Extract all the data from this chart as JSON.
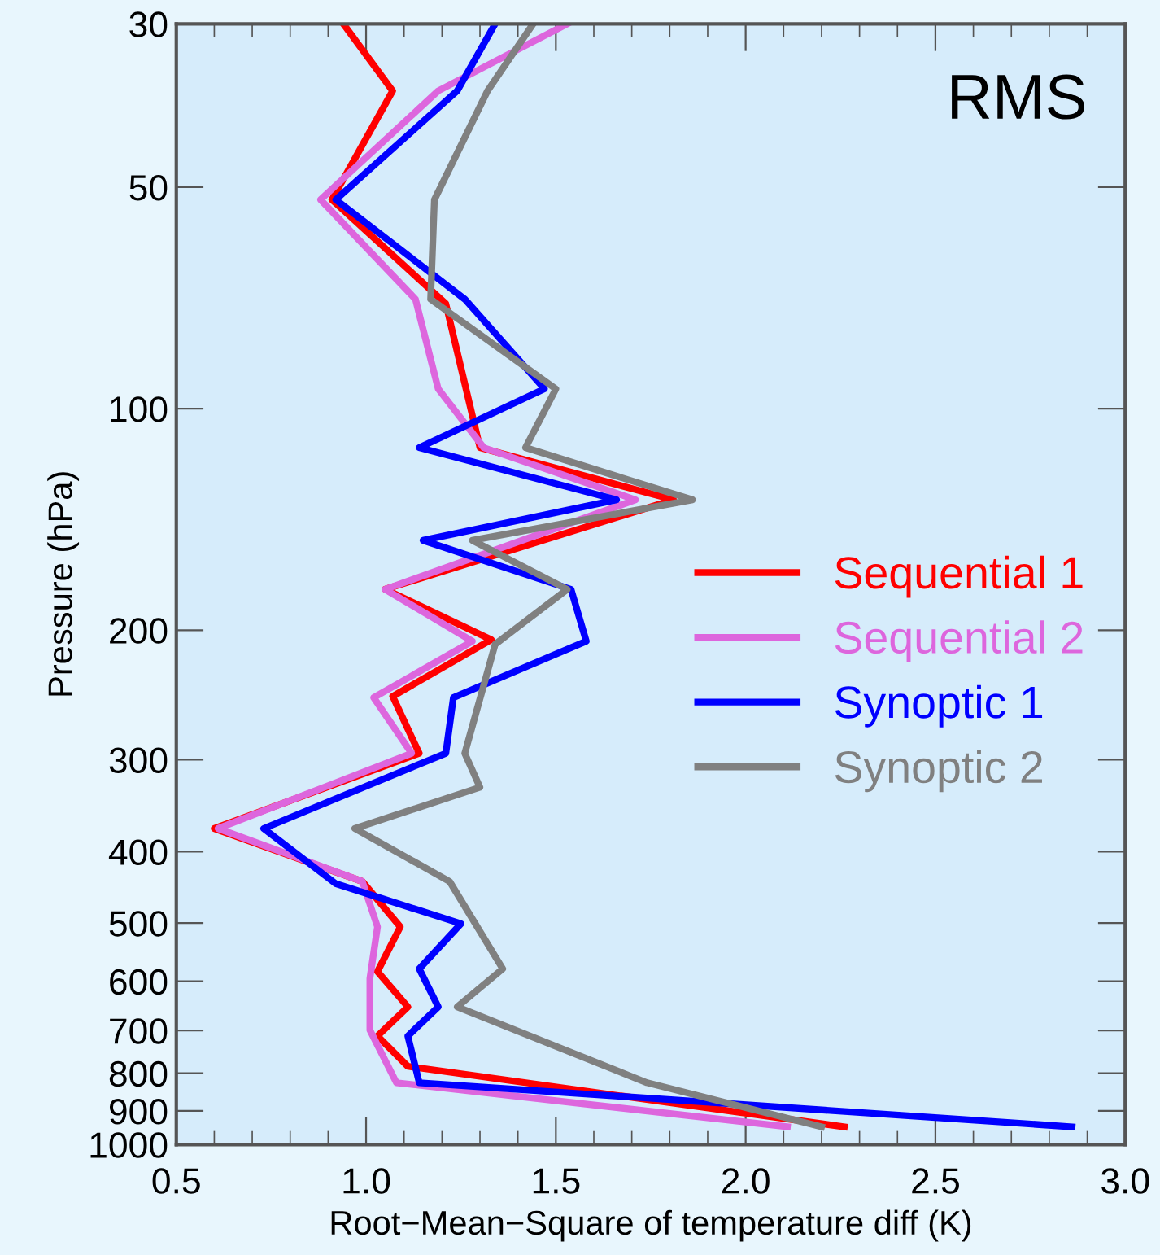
{
  "chart_data": {
    "type": "line",
    "xlabel": "Root−Mean−Square of temperature diff (K)",
    "ylabel": "Pressure (hPa)",
    "annotations": [
      "RMS"
    ],
    "log": "y",
    "xlim": [
      0.5,
      3.0
    ],
    "ylim": [
      1000,
      30
    ],
    "xticks": [
      {
        "value": 0.5,
        "label": "0.5"
      },
      {
        "value": 1.0,
        "label": "1.0"
      },
      {
        "value": 1.5,
        "label": "1.5"
      },
      {
        "value": 2.0,
        "label": "2.0"
      },
      {
        "value": 2.5,
        "label": "2.5"
      },
      {
        "value": 3.0,
        "label": "3.0"
      }
    ],
    "yticks": [
      30,
      50,
      100,
      200,
      300,
      400,
      500,
      600,
      700,
      800,
      900,
      1000
    ],
    "grid": false,
    "legend": "right",
    "marker": "none",
    "line_style": "solid",
    "series": [
      {
        "name": "Sequential 1",
        "color": "#ff0000",
        "x": [
          0.94,
          1.07,
          0.91,
          1.21,
          1.3,
          1.81,
          1.05,
          1.33,
          1.07,
          1.14,
          0.6,
          0.99,
          1.09,
          1.03,
          1.11,
          1.03,
          1.11,
          2.26
        ],
        "values": [
          30,
          37,
          52,
          72,
          113,
          133,
          176,
          206,
          246,
          294,
          372,
          439,
          506,
          582,
          650,
          712,
          783,
          946
        ]
      },
      {
        "name": "Sequential 2",
        "color": "#dd66dd",
        "x": [
          1.53,
          1.19,
          0.88,
          1.13,
          1.19,
          1.31,
          1.71,
          1.05,
          1.28,
          1.02,
          1.12,
          0.61,
          0.99,
          1.03,
          1.01,
          1.01,
          1.08,
          2.11
        ],
        "values": [
          30,
          37,
          52,
          71,
          94,
          113,
          133,
          176,
          207,
          247,
          294,
          372,
          439,
          506,
          595,
          699,
          824,
          946
        ]
      },
      {
        "name": "Synoptic 1",
        "color": "#0000ff",
        "x": [
          1.34,
          1.24,
          0.92,
          1.26,
          1.47,
          1.14,
          1.66,
          1.15,
          1.54,
          1.58,
          1.23,
          1.21,
          0.73,
          0.92,
          1.25,
          1.14,
          1.19,
          1.11,
          1.14,
          2.86
        ],
        "values": [
          30,
          37,
          52,
          71,
          94,
          113,
          133,
          151,
          176,
          207,
          247,
          294,
          372,
          442,
          501,
          577,
          650,
          712,
          824,
          946
        ]
      },
      {
        "name": "Synoptic 2",
        "color": "#808080",
        "x": [
          1.44,
          1.32,
          1.18,
          1.17,
          1.5,
          1.42,
          1.86,
          1.28,
          1.53,
          1.34,
          1.26,
          1.3,
          0.97,
          1.22,
          1.36,
          1.24,
          1.74,
          2.2
        ],
        "values": [
          30,
          37,
          52,
          71,
          94,
          113,
          133,
          151,
          176,
          209,
          294,
          327,
          372,
          439,
          577,
          650,
          824,
          946
        ]
      }
    ]
  }
}
